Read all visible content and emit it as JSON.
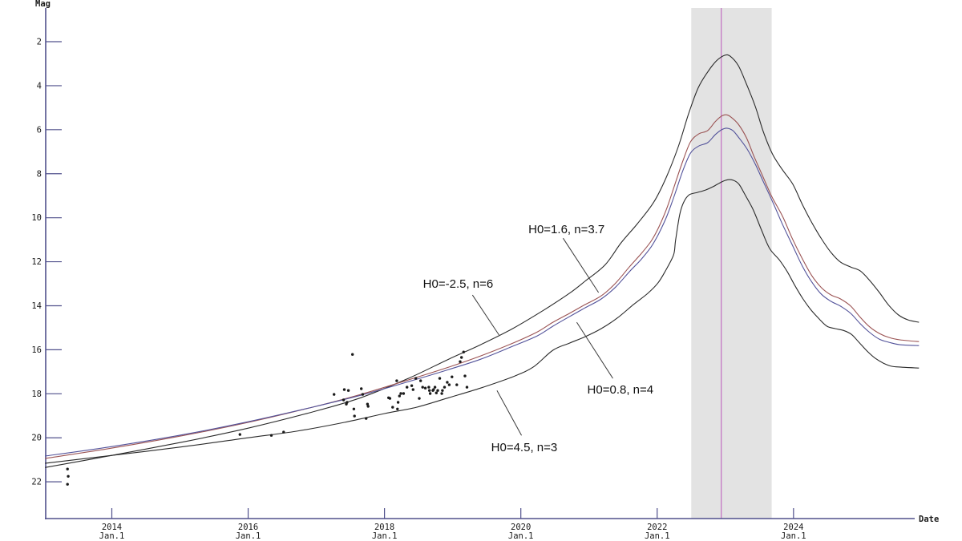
{
  "page": {
    "background": "#ffffff"
  },
  "chart_data": {
    "type": "line",
    "title": "",
    "x_axis": {
      "label": "Date",
      "min": 2013.03,
      "max": 2025.86,
      "ticks": [
        2014,
        2016,
        2018,
        2020,
        2022,
        2024
      ],
      "tick_sublabel": "Jan.1"
    },
    "y_axis": {
      "label": "Mag",
      "min": 0.47,
      "max": 23.67,
      "inverted": true,
      "ticks": [
        2,
        4,
        6,
        8,
        10,
        12,
        14,
        16,
        18,
        20,
        22
      ]
    },
    "axis_color": "#50508c",
    "grid": false,
    "highlight_band": {
      "x_start": 2022.5,
      "x_end": 2023.68,
      "color": "#e3e3e3"
    },
    "vertical_line": {
      "x": 2022.94,
      "color": "#c06fc0"
    },
    "series": [
      {
        "name": "H0=-2.5, n=6",
        "color": "#2a2a2a",
        "x": [
          2013.02,
          2014.0,
          2015.06,
          2016.0,
          2016.94,
          2017.65,
          2018.35,
          2018.94,
          2019.41,
          2019.88,
          2020.35,
          2020.71,
          2020.94,
          2021.24,
          2021.47,
          2021.71,
          2021.95,
          2022.13,
          2022.31,
          2022.46,
          2022.6,
          2022.74,
          2022.87,
          2022.99,
          2023.07,
          2023.19,
          2023.31,
          2023.44,
          2023.56,
          2023.69,
          2023.84,
          2023.99,
          2024.13,
          2024.27,
          2024.41,
          2024.55,
          2024.69,
          2024.84,
          2024.98,
          2025.12,
          2025.26,
          2025.4,
          2025.54,
          2025.68,
          2025.84
        ],
        "y": [
          21.35,
          20.8,
          20.18,
          19.56,
          18.83,
          18.18,
          17.3,
          16.43,
          15.77,
          15.04,
          14.17,
          13.44,
          12.89,
          12.13,
          11.14,
          10.27,
          9.29,
          8.19,
          6.77,
          5.28,
          4.11,
          3.38,
          2.87,
          2.62,
          2.66,
          3.09,
          3.93,
          4.95,
          6.12,
          7.1,
          7.83,
          8.48,
          9.4,
          10.23,
          10.96,
          11.58,
          12.02,
          12.24,
          12.42,
          12.86,
          13.4,
          13.99,
          14.42,
          14.64,
          14.75
        ]
      },
      {
        "name": "H0=1.6, n=3.7",
        "color": "#9a5252",
        "x": [
          2013.02,
          2014.0,
          2015.06,
          2016.0,
          2016.94,
          2017.65,
          2018.35,
          2018.94,
          2019.41,
          2019.88,
          2020.24,
          2020.47,
          2020.71,
          2020.94,
          2021.18,
          2021.39,
          2021.59,
          2021.76,
          2021.91,
          2022.02,
          2022.14,
          2022.26,
          2022.38,
          2022.49,
          2022.61,
          2022.74,
          2022.85,
          2022.94,
          2023.01,
          2023.08,
          2023.19,
          2023.31,
          2023.42,
          2023.54,
          2023.68,
          2023.84,
          2023.98,
          2024.13,
          2024.27,
          2024.41,
          2024.55,
          2024.69,
          2024.84,
          2024.98,
          2025.12,
          2025.26,
          2025.4,
          2025.56,
          2025.84
        ],
        "y": [
          20.94,
          20.47,
          19.89,
          19.3,
          18.61,
          18.03,
          17.37,
          16.79,
          16.28,
          15.7,
          15.19,
          14.75,
          14.35,
          13.95,
          13.55,
          12.97,
          12.24,
          11.65,
          11.07,
          10.45,
          9.58,
          8.48,
          7.39,
          6.55,
          6.19,
          6.04,
          5.64,
          5.39,
          5.32,
          5.42,
          5.75,
          6.37,
          7.21,
          8.05,
          9.03,
          9.94,
          10.93,
          11.87,
          12.64,
          13.18,
          13.51,
          13.69,
          14.02,
          14.53,
          14.97,
          15.26,
          15.44,
          15.55,
          15.63
        ]
      },
      {
        "name": "H0=0.8, n=4",
        "color": "#52529a",
        "x": [
          2013.02,
          2014.0,
          2015.06,
          2016.0,
          2016.94,
          2017.65,
          2018.35,
          2018.94,
          2019.41,
          2019.88,
          2020.24,
          2020.47,
          2020.71,
          2020.94,
          2021.18,
          2021.39,
          2021.59,
          2021.76,
          2021.91,
          2022.02,
          2022.14,
          2022.26,
          2022.38,
          2022.49,
          2022.61,
          2022.74,
          2022.85,
          2022.94,
          2023.02,
          2023.11,
          2023.2,
          2023.32,
          2023.44,
          2023.56,
          2023.7,
          2023.84,
          2023.99,
          2024.13,
          2024.27,
          2024.41,
          2024.55,
          2024.69,
          2024.84,
          2024.98,
          2025.12,
          2025.26,
          2025.4,
          2025.56,
          2025.84
        ],
        "y": [
          20.83,
          20.4,
          19.85,
          19.27,
          18.61,
          18.07,
          17.45,
          16.9,
          16.43,
          15.84,
          15.37,
          14.93,
          14.5,
          14.1,
          13.69,
          13.15,
          12.46,
          11.91,
          11.33,
          10.74,
          9.94,
          8.92,
          7.83,
          7.06,
          6.74,
          6.59,
          6.23,
          6.01,
          5.93,
          6.04,
          6.37,
          6.88,
          7.57,
          8.38,
          9.32,
          10.31,
          11.29,
          12.2,
          12.93,
          13.48,
          13.8,
          14.02,
          14.35,
          14.82,
          15.22,
          15.52,
          15.66,
          15.77,
          15.81
        ]
      },
      {
        "name": "H0=4.5, n=3",
        "color": "#2a2a2a",
        "x": [
          2013.02,
          2014.0,
          2015.06,
          2016.0,
          2016.71,
          2017.41,
          2018.0,
          2018.47,
          2018.94,
          2019.41,
          2019.88,
          2020.18,
          2020.47,
          2020.71,
          2020.94,
          2021.18,
          2021.41,
          2021.65,
          2021.86,
          2022.01,
          2022.12,
          2022.24,
          2022.27,
          2022.33,
          2022.39,
          2022.47,
          2022.59,
          2022.71,
          2022.82,
          2022.94,
          2023.04,
          2023.12,
          2023.2,
          2023.29,
          2023.41,
          2023.53,
          2023.65,
          2023.79,
          2023.91,
          2024.02,
          2024.14,
          2024.26,
          2024.38,
          2024.49,
          2024.61,
          2024.73,
          2024.85,
          2024.96,
          2025.08,
          2025.2,
          2025.32,
          2025.44,
          2025.58,
          2025.84
        ],
        "y": [
          21.16,
          20.8,
          20.4,
          20.0,
          19.7,
          19.3,
          18.9,
          18.61,
          18.18,
          17.74,
          17.23,
          16.79,
          16.02,
          15.7,
          15.41,
          15.04,
          14.57,
          13.95,
          13.44,
          12.97,
          12.42,
          11.69,
          11.03,
          9.87,
          9.29,
          8.96,
          8.85,
          8.74,
          8.59,
          8.38,
          8.27,
          8.3,
          8.48,
          8.96,
          9.65,
          10.56,
          11.4,
          11.91,
          12.46,
          13.08,
          13.69,
          14.2,
          14.61,
          14.93,
          15.04,
          15.12,
          15.3,
          15.66,
          16.06,
          16.39,
          16.61,
          16.75,
          16.79,
          16.83
        ]
      }
    ],
    "scatter": {
      "name": "observations",
      "color": "#1a1a1a",
      "points": [
        [
          2013.35,
          21.42
        ],
        [
          2013.36,
          21.75
        ],
        [
          2013.35,
          22.11
        ],
        [
          2015.88,
          19.85
        ],
        [
          2016.34,
          19.89
        ],
        [
          2016.52,
          19.74
        ],
        [
          2017.26,
          18.03
        ],
        [
          2017.4,
          18.28
        ],
        [
          2017.41,
          17.81
        ],
        [
          2017.44,
          18.47
        ],
        [
          2017.45,
          18.39
        ],
        [
          2017.47,
          17.85
        ],
        [
          2017.53,
          16.21
        ],
        [
          2017.55,
          18.69
        ],
        [
          2017.56,
          19.01
        ],
        [
          2017.66,
          17.77
        ],
        [
          2017.68,
          18.03
        ],
        [
          2017.73,
          19.12
        ],
        [
          2017.75,
          18.47
        ],
        [
          2017.76,
          18.57
        ],
        [
          2018.06,
          18.18
        ],
        [
          2018.08,
          18.21
        ],
        [
          2018.12,
          18.61
        ],
        [
          2018.18,
          17.41
        ],
        [
          2018.19,
          18.69
        ],
        [
          2018.2,
          18.39
        ],
        [
          2018.22,
          18.1
        ],
        [
          2018.24,
          17.99
        ],
        [
          2018.28,
          17.99
        ],
        [
          2018.33,
          17.7
        ],
        [
          2018.4,
          17.63
        ],
        [
          2018.42,
          17.81
        ],
        [
          2018.46,
          17.3
        ],
        [
          2018.51,
          18.21
        ],
        [
          2018.53,
          17.41
        ],
        [
          2018.56,
          17.7
        ],
        [
          2018.6,
          17.74
        ],
        [
          2018.65,
          17.7
        ],
        [
          2018.66,
          17.85
        ],
        [
          2018.67,
          17.99
        ],
        [
          2018.71,
          17.85
        ],
        [
          2018.72,
          17.81
        ],
        [
          2018.74,
          17.7
        ],
        [
          2018.76,
          17.96
        ],
        [
          2018.78,
          17.85
        ],
        [
          2018.81,
          17.3
        ],
        [
          2018.84,
          17.99
        ],
        [
          2018.85,
          17.85
        ],
        [
          2018.88,
          17.7
        ],
        [
          2018.92,
          17.48
        ],
        [
          2018.95,
          17.59
        ],
        [
          2018.99,
          17.23
        ],
        [
          2019.06,
          17.59
        ],
        [
          2019.11,
          16.54
        ],
        [
          2019.13,
          16.35
        ],
        [
          2019.16,
          16.1
        ],
        [
          2019.18,
          17.19
        ],
        [
          2019.21,
          17.7
        ]
      ]
    },
    "annotations": [
      {
        "text": "H0=1.6, n=3.7",
        "x": 2020.67,
        "y": 10.53,
        "pointer": [
          [
            2020.62,
            10.93
          ],
          [
            2021.14,
            13.4
          ]
        ]
      },
      {
        "text": "H0=-2.5, n=6",
        "x": 2019.08,
        "y": 13.0,
        "pointer": [
          [
            2019.29,
            13.51
          ],
          [
            2019.68,
            15.33
          ]
        ]
      },
      {
        "text": "H0=0.8, n=4",
        "x": 2021.46,
        "y": 17.81,
        "pointer": [
          [
            2021.35,
            17.3
          ],
          [
            2020.82,
            14.75
          ]
        ]
      },
      {
        "text": "H0=4.5, n=3",
        "x": 2020.05,
        "y": 20.43,
        "pointer": [
          [
            2020.01,
            19.89
          ],
          [
            2019.65,
            17.85
          ]
        ]
      }
    ]
  }
}
